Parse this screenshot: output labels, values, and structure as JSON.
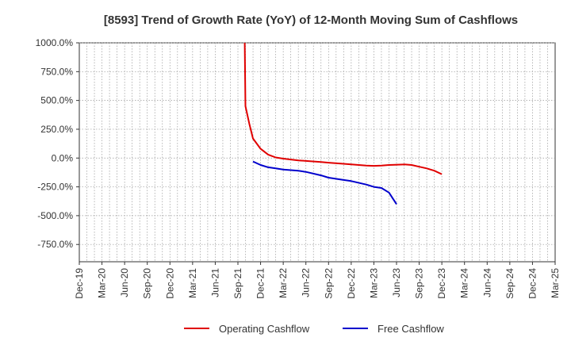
{
  "chart_data": {
    "type": "line",
    "title": "[8593]  Trend of Growth Rate (YoY) of 12-Month Moving Sum of Cashflows",
    "xlabel": "",
    "ylabel": "",
    "x_tick_labels": [
      "Dec-19",
      "Mar-20",
      "Jun-20",
      "Sep-20",
      "Dec-20",
      "Mar-21",
      "Jun-21",
      "Sep-21",
      "Dec-21",
      "Mar-22",
      "Jun-22",
      "Sep-22",
      "Dec-22",
      "Mar-23",
      "Jun-23",
      "Sep-23",
      "Dec-23",
      "Mar-24",
      "Jun-24",
      "Sep-24",
      "Dec-24",
      "Mar-25"
    ],
    "y_tick_labels": [
      "1000.0%",
      "750.0%",
      "500.0%",
      "250.0%",
      "0.0%",
      "-250.0%",
      "-500.0%",
      "-750.0%"
    ],
    "y_ticks": [
      1000,
      750,
      500,
      250,
      0,
      -250,
      -500,
      -750
    ],
    "ylim": [
      -900,
      1000
    ],
    "xlim": [
      0,
      63
    ],
    "grid": true,
    "legend_position": "bottom",
    "series": [
      {
        "name": "Operating Cashflow",
        "color": "#e00000",
        "x": [
          21.9,
          22,
          22.5,
          23,
          24,
          25,
          26,
          27,
          29,
          30,
          32,
          33,
          35,
          36,
          38,
          39,
          40,
          41,
          43,
          44,
          45,
          46,
          47,
          48
        ],
        "y": [
          1000,
          450,
          300,
          170,
          80,
          30,
          5,
          -5,
          -20,
          -25,
          -35,
          -40,
          -50,
          -55,
          -65,
          -68,
          -65,
          -60,
          -55,
          -60,
          -75,
          -90,
          -110,
          -140
        ]
      },
      {
        "name": "Free Cashflow",
        "color": "#0000cc",
        "x": [
          23,
          24,
          25,
          26,
          27,
          29,
          30,
          32,
          33,
          35,
          36,
          38,
          39,
          40,
          41,
          41.5,
          42
        ],
        "y": [
          -30,
          -60,
          -80,
          -90,
          -100,
          -110,
          -120,
          -150,
          -170,
          -190,
          -200,
          -230,
          -250,
          -260,
          -300,
          -350,
          -400
        ]
      }
    ]
  },
  "legend": {
    "operating_label": "Operating Cashflow",
    "free_label": "Free Cashflow"
  }
}
